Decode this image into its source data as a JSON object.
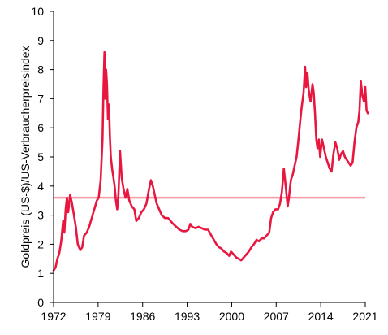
{
  "chart_data": {
    "type": "line",
    "title": "",
    "xlabel": "",
    "ylabel": "Goldpreis (US-$)/US-Verbraucherpreisindex",
    "xlim": [
      1972,
      2021
    ],
    "ylim": [
      0,
      10
    ],
    "x_ticks": [
      1972,
      1979,
      1986,
      1993,
      2000,
      2007,
      2014,
      2021
    ],
    "x_tick_labels": [
      "1972",
      "1979",
      "1986",
      "1993",
      "2000",
      "2007",
      "2014",
      "2021"
    ],
    "y_ticks": [
      0,
      1,
      2,
      3,
      4,
      5,
      6,
      7,
      8,
      9,
      10
    ],
    "y_tick_labels": [
      "0",
      "1",
      "2",
      "3",
      "4",
      "5",
      "6",
      "7",
      "8",
      "9",
      "10"
    ],
    "grid": false,
    "legend": "none",
    "colors": {
      "series": "#e8173f",
      "reference": "#f59ba5",
      "axis": "#000000"
    },
    "reference_line": {
      "y": 3.6,
      "name": ""
    },
    "series": [
      {
        "name": "",
        "x": [
          1972.0,
          1972.3,
          1972.6,
          1972.9,
          1973.2,
          1973.5,
          1973.7,
          1973.9,
          1974.1,
          1974.3,
          1974.6,
          1974.9,
          1975.2,
          1975.5,
          1975.8,
          1976.2,
          1976.5,
          1976.8,
          1977.2,
          1977.6,
          1978.0,
          1978.4,
          1978.8,
          1979.1,
          1979.4,
          1979.7,
          1979.85,
          1980.0,
          1980.1,
          1980.25,
          1980.4,
          1980.55,
          1980.7,
          1980.85,
          1981.0,
          1981.2,
          1981.4,
          1981.6,
          1981.8,
          1982.0,
          1982.2,
          1982.45,
          1982.7,
          1982.85,
          1983.0,
          1983.3,
          1983.6,
          1983.9,
          1984.3,
          1984.7,
          1985.0,
          1985.4,
          1985.8,
          1986.2,
          1986.6,
          1987.0,
          1987.3,
          1987.6,
          1987.9,
          1988.2,
          1988.6,
          1989.0,
          1989.5,
          1990.0,
          1990.4,
          1990.8,
          1991.3,
          1991.8,
          1992.3,
          1992.8,
          1993.2,
          1993.5,
          1993.8,
          1994.3,
          1994.8,
          1995.3,
          1995.8,
          1996.3,
          1996.8,
          1997.2,
          1997.6,
          1998.0,
          1998.4,
          1998.8,
          1999.2,
          1999.6,
          1999.9,
          2000.3,
          2000.7,
          2001.1,
          2001.5,
          2001.9,
          2002.3,
          2002.7,
          2003.1,
          2003.5,
          2003.9,
          2004.3,
          2004.7,
          2005.1,
          2005.5,
          2005.9,
          2006.2,
          2006.5,
          2006.9,
          2007.3,
          2007.6,
          2007.9,
          2008.2,
          2008.5,
          2008.8,
          2009.0,
          2009.3,
          2009.6,
          2009.9,
          2010.2,
          2010.5,
          2010.8,
          2011.0,
          2011.3,
          2011.55,
          2011.7,
          2011.9,
          2012.1,
          2012.4,
          2012.7,
          2012.9,
          2013.1,
          2013.3,
          2013.5,
          2013.7,
          2013.9,
          2014.2,
          2014.5,
          2014.8,
          2015.1,
          2015.4,
          2015.7,
          2016.0,
          2016.3,
          2016.6,
          2016.9,
          2017.2,
          2017.5,
          2017.8,
          2018.1,
          2018.4,
          2018.7,
          2019.0,
          2019.3,
          2019.6,
          2019.9,
          2020.1,
          2020.3,
          2020.55,
          2020.8,
          2021.0,
          2021.2,
          2021.4
        ],
        "values": [
          1.1,
          1.2,
          1.5,
          1.7,
          2.1,
          2.8,
          2.4,
          3.2,
          3.6,
          3.1,
          3.7,
          3.4,
          3.0,
          2.6,
          2.0,
          1.8,
          1.9,
          2.3,
          2.4,
          2.6,
          2.9,
          3.2,
          3.5,
          3.6,
          4.2,
          5.6,
          7.4,
          8.6,
          7.0,
          8.0,
          7.5,
          6.3,
          6.8,
          5.7,
          5.0,
          4.6,
          4.3,
          4.0,
          3.5,
          3.2,
          3.7,
          5.2,
          4.3,
          4.1,
          3.9,
          3.6,
          3.9,
          3.5,
          3.3,
          3.2,
          2.8,
          2.9,
          3.1,
          3.2,
          3.4,
          3.9,
          4.2,
          4.0,
          3.7,
          3.4,
          3.2,
          3.0,
          2.9,
          2.9,
          2.8,
          2.7,
          2.6,
          2.5,
          2.45,
          2.45,
          2.5,
          2.7,
          2.6,
          2.55,
          2.6,
          2.55,
          2.5,
          2.5,
          2.3,
          2.15,
          2.0,
          1.9,
          1.85,
          1.75,
          1.7,
          1.6,
          1.75,
          1.65,
          1.55,
          1.5,
          1.45,
          1.55,
          1.65,
          1.75,
          1.9,
          2.0,
          2.15,
          2.1,
          2.2,
          2.2,
          2.3,
          2.4,
          2.9,
          3.1,
          3.2,
          3.2,
          3.4,
          3.8,
          4.6,
          4.0,
          3.3,
          3.6,
          4.2,
          4.4,
          4.7,
          5.0,
          5.6,
          6.3,
          6.7,
          7.2,
          8.1,
          7.4,
          7.9,
          7.3,
          6.9,
          7.5,
          7.2,
          6.5,
          5.6,
          5.3,
          5.6,
          5.0,
          5.6,
          5.3,
          5.0,
          4.8,
          4.6,
          4.5,
          5.1,
          5.5,
          5.3,
          4.9,
          5.1,
          5.2,
          5.0,
          4.9,
          4.8,
          4.7,
          4.8,
          5.5,
          6.0,
          6.2,
          6.6,
          7.6,
          7.1,
          6.9,
          7.4,
          6.6,
          6.5
        ]
      }
    ]
  }
}
